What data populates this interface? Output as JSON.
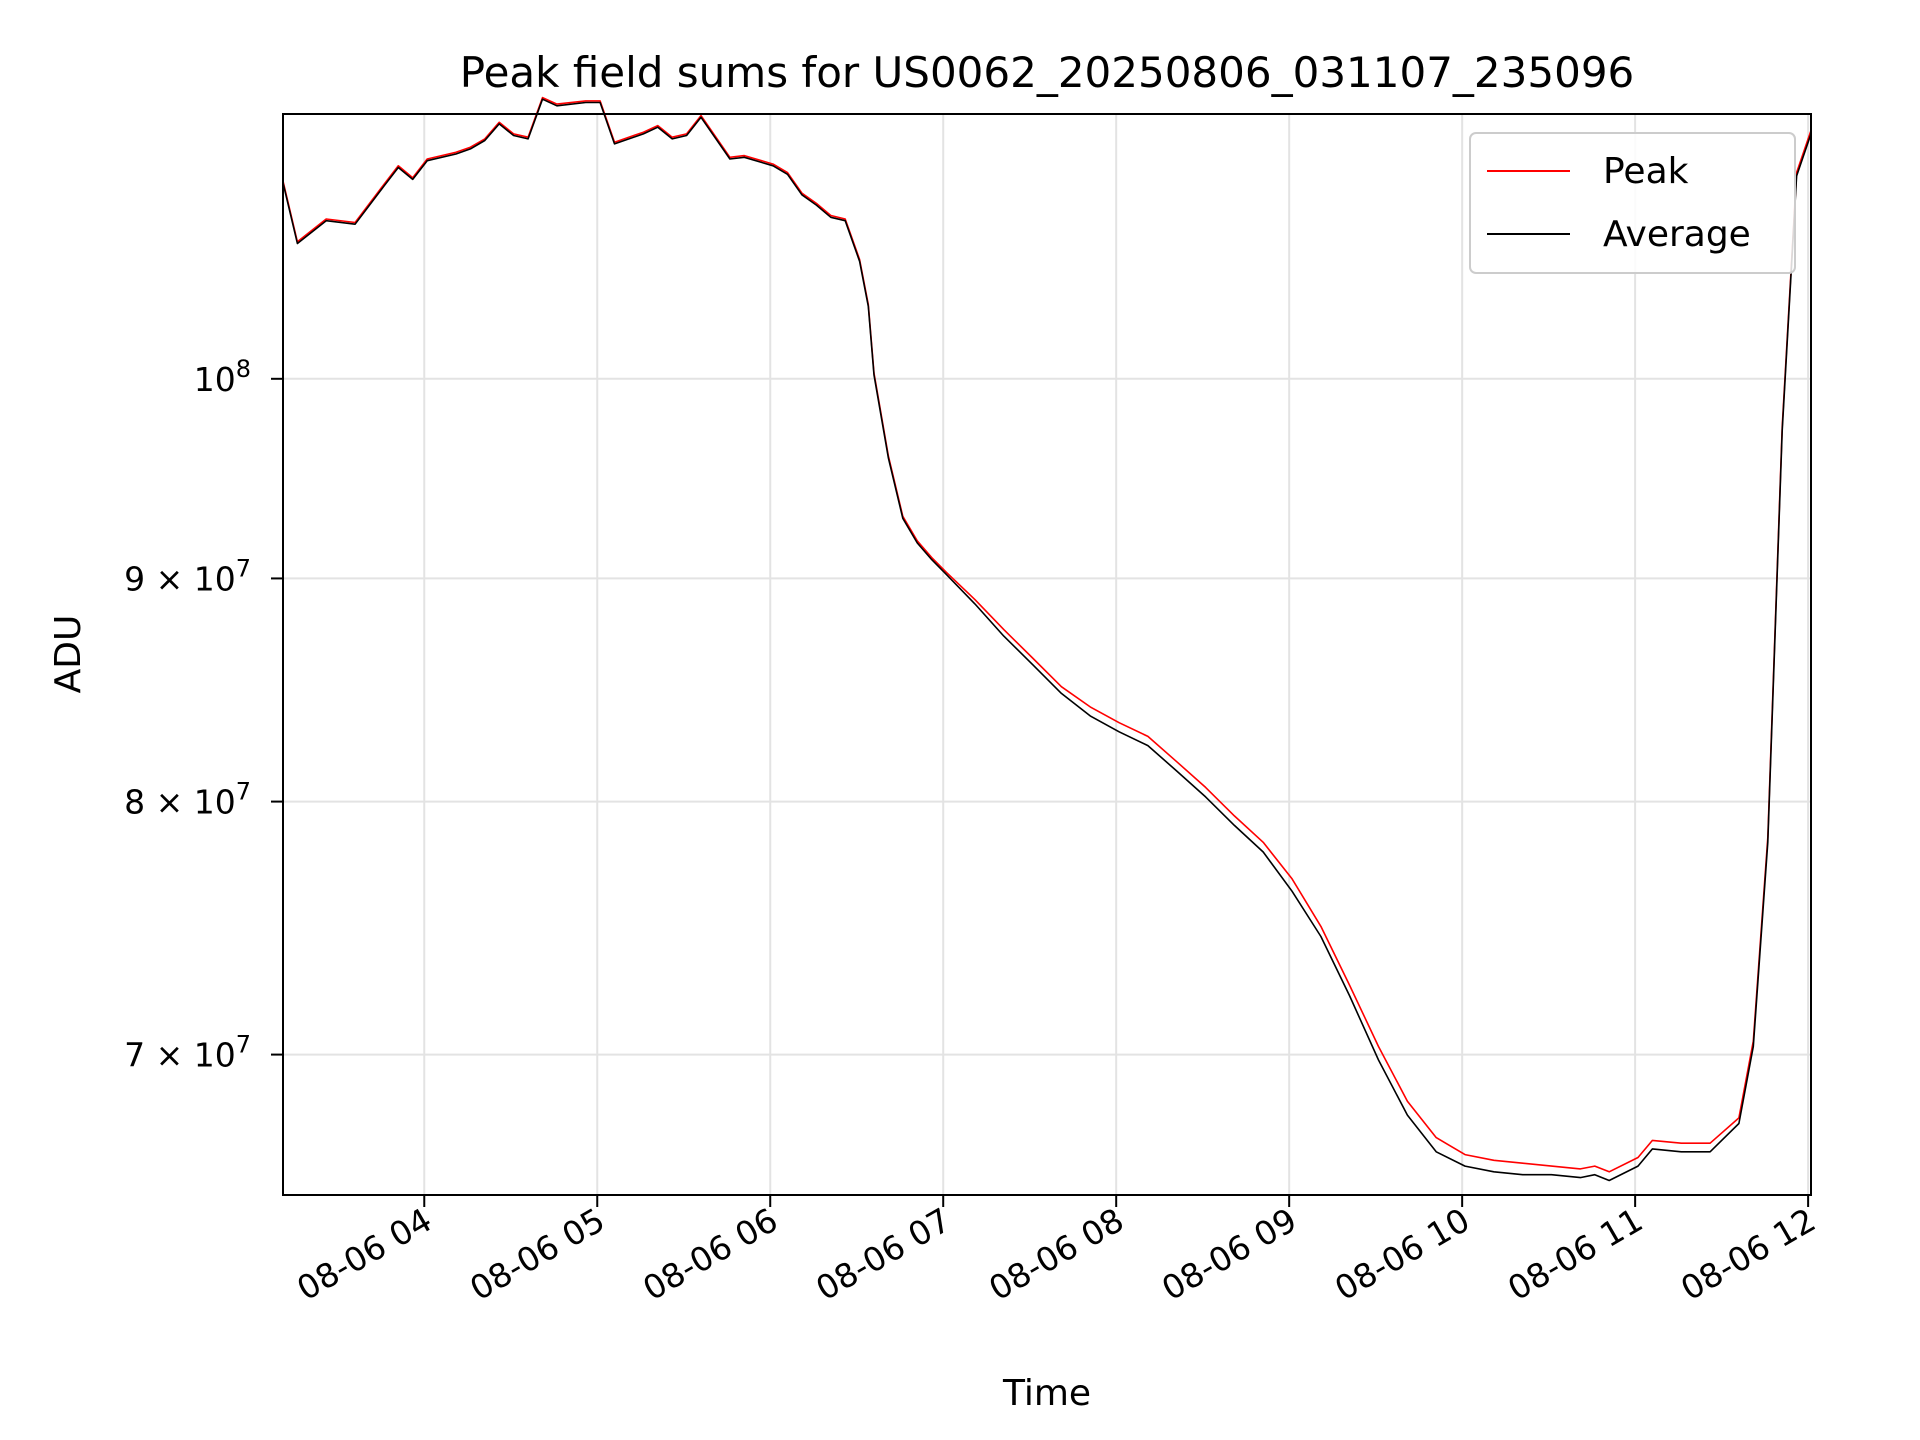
{
  "chart_data": {
    "type": "line",
    "title": "Peak field sums for US0062_20250806_031107_235096",
    "xlabel": "Time",
    "ylabel": "ADU",
    "yscale": "log",
    "grid": true,
    "legend_position": "top-right",
    "xlim": [
      "08-06 03:11",
      "08-06 12:01"
    ],
    "ylim": [
      65000000,
      115000000
    ],
    "x_ticks": [
      {
        "value": "08-06 04:00",
        "label": "08-06 04"
      },
      {
        "value": "08-06 05:00",
        "label": "08-06 05"
      },
      {
        "value": "08-06 06:00",
        "label": "08-06 06"
      },
      {
        "value": "08-06 07:00",
        "label": "08-06 07"
      },
      {
        "value": "08-06 08:00",
        "label": "08-06 08"
      },
      {
        "value": "08-06 09:00",
        "label": "08-06 09"
      },
      {
        "value": "08-06 10:00",
        "label": "08-06 10"
      },
      {
        "value": "08-06 11:00",
        "label": "08-06 11"
      },
      {
        "value": "08-06 12:00",
        "label": "08-06 12"
      }
    ],
    "y_ticks": [
      {
        "value": 70000000,
        "mantissa": "7",
        "base": "10",
        "exponent": "7"
      },
      {
        "value": 80000000,
        "mantissa": "8",
        "base": "10",
        "exponent": "7"
      },
      {
        "value": 90000000,
        "mantissa": "9",
        "base": "10",
        "exponent": "7"
      },
      {
        "value": 100000000,
        "mantissa": "",
        "base": "10",
        "exponent": "8"
      }
    ],
    "series": [
      {
        "name": "Peak",
        "color": "#ff0000",
        "points": [
          [
            "08-06 03:11",
            111000000
          ],
          [
            "08-06 03:16",
            107500000
          ],
          [
            "08-06 03:26",
            108800000
          ],
          [
            "08-06 03:36",
            108600000
          ],
          [
            "08-06 03:46",
            110800000
          ],
          [
            "08-06 03:51",
            111900000
          ],
          [
            "08-06 03:56",
            111200000
          ],
          [
            "08-06 04:01",
            112300000
          ],
          [
            "08-06 04:11",
            112700000
          ],
          [
            "08-06 04:16",
            113000000
          ],
          [
            "08-06 04:21",
            113500000
          ],
          [
            "08-06 04:26",
            114500000
          ],
          [
            "08-06 04:31",
            113800000
          ],
          [
            "08-06 04:36",
            113600000
          ],
          [
            "08-06 04:41",
            116000000
          ],
          [
            "08-06 04:46",
            115600000
          ],
          [
            "08-06 04:56",
            115800000
          ],
          [
            "08-06 05:01",
            115800000
          ],
          [
            "08-06 05:06",
            113300000
          ],
          [
            "08-06 05:16",
            113900000
          ],
          [
            "08-06 05:21",
            114300000
          ],
          [
            "08-06 05:26",
            113600000
          ],
          [
            "08-06 05:31",
            113800000
          ],
          [
            "08-06 05:36",
            114900000
          ],
          [
            "08-06 05:46",
            112400000
          ],
          [
            "08-06 05:51",
            112500000
          ],
          [
            "08-06 06:01",
            112000000
          ],
          [
            "08-06 06:06",
            111500000
          ],
          [
            "08-06 06:11",
            110300000
          ],
          [
            "08-06 06:16",
            109700000
          ],
          [
            "08-06 06:21",
            109000000
          ],
          [
            "08-06 06:26",
            108800000
          ],
          [
            "08-06 06:31",
            106500000
          ],
          [
            "08-06 06:34",
            104000000
          ],
          [
            "08-06 06:36",
            100300000
          ],
          [
            "08-06 06:41",
            96000000
          ],
          [
            "08-06 06:46",
            93000000
          ],
          [
            "08-06 06:51",
            91800000
          ],
          [
            "08-06 06:56",
            91000000
          ],
          [
            "08-06 07:01",
            90300000
          ],
          [
            "08-06 07:11",
            89000000
          ],
          [
            "08-06 07:21",
            87600000
          ],
          [
            "08-06 07:31",
            86300000
          ],
          [
            "08-06 07:41",
            85000000
          ],
          [
            "08-06 07:51",
            84100000
          ],
          [
            "08-06 08:01",
            83400000
          ],
          [
            "08-06 08:11",
            82800000
          ],
          [
            "08-06 08:21",
            81700000
          ],
          [
            "08-06 08:31",
            80600000
          ],
          [
            "08-06 08:41",
            79400000
          ],
          [
            "08-06 08:51",
            78300000
          ],
          [
            "08-06 09:01",
            76800000
          ],
          [
            "08-06 09:11",
            74900000
          ],
          [
            "08-06 09:21",
            72600000
          ],
          [
            "08-06 09:31",
            70300000
          ],
          [
            "08-06 09:41",
            68300000
          ],
          [
            "08-06 09:51",
            67000000
          ],
          [
            "08-06 10:01",
            66400000
          ],
          [
            "08-06 10:11",
            66200000
          ],
          [
            "08-06 10:21",
            66100000
          ],
          [
            "08-06 10:31",
            66000000
          ],
          [
            "08-06 10:41",
            65900000
          ],
          [
            "08-06 10:46",
            66000000
          ],
          [
            "08-06 10:51",
            65800000
          ],
          [
            "08-06 11:01",
            66300000
          ],
          [
            "08-06 11:06",
            66900000
          ],
          [
            "08-06 11:16",
            66800000
          ],
          [
            "08-06 11:26",
            66800000
          ],
          [
            "08-06 11:36",
            67700000
          ],
          [
            "08-06 11:41",
            70500000
          ],
          [
            "08-06 11:46",
            78500000
          ],
          [
            "08-06 11:51",
            97500000
          ],
          [
            "08-06 11:56",
            111500000
          ],
          [
            "08-06 12:01",
            114000000
          ]
        ]
      },
      {
        "name": "Average",
        "color": "#000000",
        "points": [
          [
            "08-06 03:11",
            110900000
          ],
          [
            "08-06 03:16",
            107400000
          ],
          [
            "08-06 03:26",
            108700000
          ],
          [
            "08-06 03:36",
            108500000
          ],
          [
            "08-06 03:46",
            110700000
          ],
          [
            "08-06 03:51",
            111800000
          ],
          [
            "08-06 03:56",
            111100000
          ],
          [
            "08-06 04:01",
            112200000
          ],
          [
            "08-06 04:11",
            112600000
          ],
          [
            "08-06 04:16",
            112900000
          ],
          [
            "08-06 04:21",
            113400000
          ],
          [
            "08-06 04:26",
            114400000
          ],
          [
            "08-06 04:31",
            113700000
          ],
          [
            "08-06 04:36",
            113500000
          ],
          [
            "08-06 04:41",
            115900000
          ],
          [
            "08-06 04:46",
            115500000
          ],
          [
            "08-06 04:56",
            115700000
          ],
          [
            "08-06 05:01",
            115700000
          ],
          [
            "08-06 05:06",
            113200000
          ],
          [
            "08-06 05:16",
            113800000
          ],
          [
            "08-06 05:21",
            114200000
          ],
          [
            "08-06 05:26",
            113500000
          ],
          [
            "08-06 05:31",
            113700000
          ],
          [
            "08-06 05:36",
            114800000
          ],
          [
            "08-06 05:46",
            112300000
          ],
          [
            "08-06 05:51",
            112400000
          ],
          [
            "08-06 06:01",
            111900000
          ],
          [
            "08-06 06:06",
            111400000
          ],
          [
            "08-06 06:11",
            110200000
          ],
          [
            "08-06 06:16",
            109600000
          ],
          [
            "08-06 06:21",
            108900000
          ],
          [
            "08-06 06:26",
            108700000
          ],
          [
            "08-06 06:31",
            106400000
          ],
          [
            "08-06 06:34",
            103900000
          ],
          [
            "08-06 06:36",
            100200000
          ],
          [
            "08-06 06:41",
            95900000
          ],
          [
            "08-06 06:46",
            92900000
          ],
          [
            "08-06 06:51",
            91700000
          ],
          [
            "08-06 06:56",
            90900000
          ],
          [
            "08-06 07:01",
            90200000
          ],
          [
            "08-06 07:11",
            88800000
          ],
          [
            "08-06 07:21",
            87300000
          ],
          [
            "08-06 07:31",
            86000000
          ],
          [
            "08-06 07:41",
            84700000
          ],
          [
            "08-06 07:51",
            83700000
          ],
          [
            "08-06 08:01",
            83000000
          ],
          [
            "08-06 08:11",
            82400000
          ],
          [
            "08-06 08:21",
            81300000
          ],
          [
            "08-06 08:31",
            80200000
          ],
          [
            "08-06 08:41",
            79000000
          ],
          [
            "08-06 08:51",
            77900000
          ],
          [
            "08-06 09:01",
            76300000
          ],
          [
            "08-06 09:11",
            74500000
          ],
          [
            "08-06 09:21",
            72200000
          ],
          [
            "08-06 09:31",
            69800000
          ],
          [
            "08-06 09:41",
            67800000
          ],
          [
            "08-06 09:51",
            66500000
          ],
          [
            "08-06 10:01",
            66000000
          ],
          [
            "08-06 10:11",
            65800000
          ],
          [
            "08-06 10:21",
            65700000
          ],
          [
            "08-06 10:31",
            65700000
          ],
          [
            "08-06 10:41",
            65600000
          ],
          [
            "08-06 10:46",
            65700000
          ],
          [
            "08-06 10:51",
            65500000
          ],
          [
            "08-06 11:01",
            66000000
          ],
          [
            "08-06 11:06",
            66600000
          ],
          [
            "08-06 11:16",
            66500000
          ],
          [
            "08-06 11:26",
            66500000
          ],
          [
            "08-06 11:36",
            67500000
          ],
          [
            "08-06 11:41",
            70300000
          ],
          [
            "08-06 11:46",
            78300000
          ],
          [
            "08-06 11:51",
            97300000
          ],
          [
            "08-06 11:56",
            111300000
          ],
          [
            "08-06 12:01",
            113800000
          ]
        ]
      }
    ]
  }
}
